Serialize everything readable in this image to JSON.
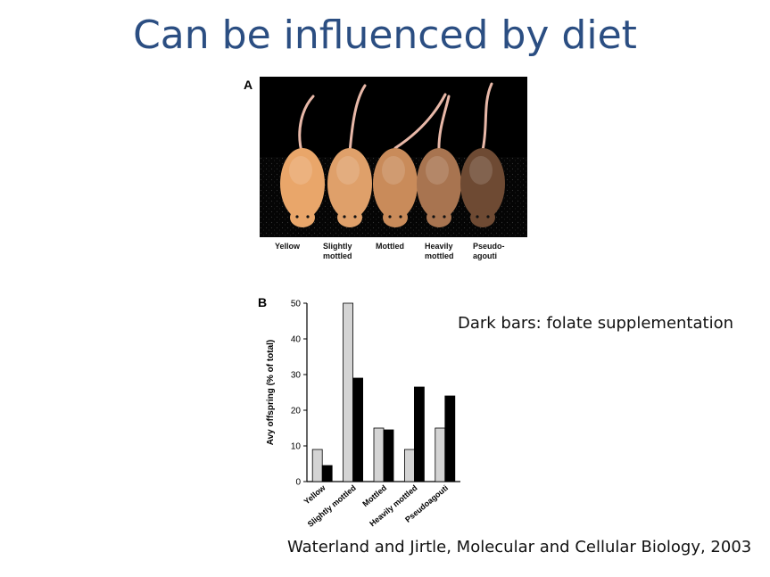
{
  "slide": {
    "title": "Can be influenced by diet",
    "note": "Dark bars: folate supplementation",
    "citation": "Waterland and Jirtle, Molecular and Cellular Biology, 2003"
  },
  "panel_a": {
    "label": "A",
    "mice": [
      {
        "line1": "Yellow",
        "line2": "",
        "color": "#e9a66a"
      },
      {
        "line1": "Slightly",
        "line2": "mottled",
        "color": "#dfa06a"
      },
      {
        "line1": "Mottled",
        "line2": "",
        "color": "#c98b5a"
      },
      {
        "line1": "Heavily",
        "line2": "mottled",
        "color": "#a87450"
      },
      {
        "line1": "Pseudo-",
        "line2": "agouti",
        "color": "#6e4a33"
      }
    ]
  },
  "colors": {
    "control": "#d4d4d4",
    "folate": "#000000",
    "title": "#2b4e82"
  },
  "chart_data": {
    "type": "bar",
    "panel_label": "B",
    "categories": [
      "Yellow",
      "Slightly mottled",
      "Mottled",
      "Heavily mottled",
      "Pseudoagouti"
    ],
    "series": [
      {
        "values": [
          9,
          50,
          15,
          9,
          15
        ]
      },
      {
        "values": [
          4.5,
          29,
          14.5,
          26.5,
          24
        ]
      }
    ],
    "ylabel": "Avy offspring (% of total)",
    "ylim": [
      0,
      50
    ],
    "yticks": [
      0,
      10,
      20,
      30,
      40,
      50
    ],
    "grid": false
  }
}
